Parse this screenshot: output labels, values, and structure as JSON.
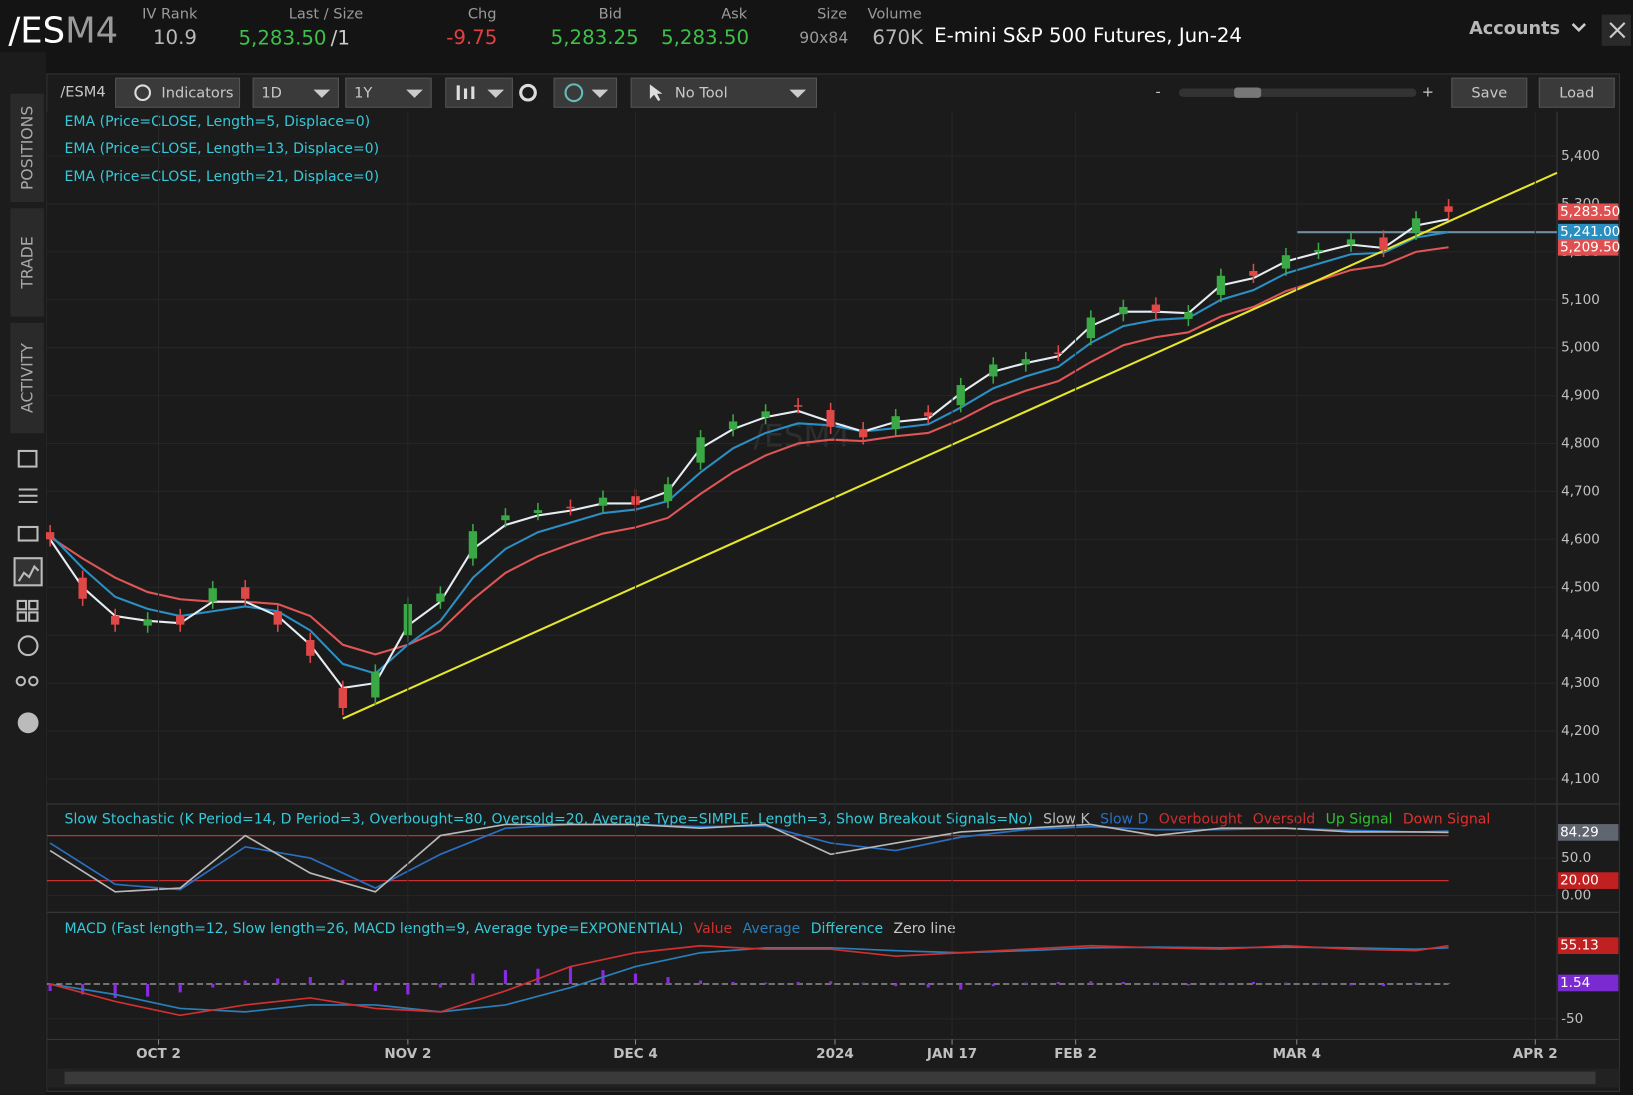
{
  "header": {
    "symbol_root": "/ES",
    "symbol_month": "M4",
    "iv_rank_label": "IV Rank",
    "iv_rank": 10.9,
    "last_label": "Last / Size",
    "last": "5,283.50",
    "last_size": "/1",
    "chg_label": "Chg",
    "chg": -9.75,
    "bid_label": "Bid",
    "bid": "5,283.25",
    "ask_label": "Ask",
    "ask": "5,283.50",
    "size_label": "Size",
    "size": "90x84",
    "volume_label": "Volume",
    "volume": "670K",
    "description": "E-mini S&P 500 Futures, Jun-24",
    "accounts": "Accounts"
  },
  "toolbar": {
    "symbol": "/ESM4",
    "indicators": "Indicators",
    "aggregation": "1D",
    "range": "1Y",
    "drawing": "No Tool",
    "zoom_out": "-",
    "zoom_in": "+",
    "save": "Save",
    "load": "Load"
  },
  "sidebar": [
    "POSITIONS",
    "TRADE",
    "ACTIVITY"
  ],
  "chart_data": [
    {
      "type": "candlestick",
      "x": [
        0,
        3,
        6,
        9,
        12,
        15,
        18,
        21,
        24,
        27,
        30,
        33,
        36,
        39,
        42,
        45,
        48,
        51,
        54,
        57,
        60,
        63,
        66,
        69,
        72,
        75,
        78,
        81,
        84,
        87,
        90,
        93,
        96,
        99,
        102,
        105,
        108,
        111,
        114,
        117,
        120,
        123,
        126,
        129
      ],
      "open": [
        4615,
        4520,
        4440,
        4420,
        4440,
        4470,
        4500,
        4450,
        4390,
        4290,
        4270,
        4400,
        4470,
        4560,
        4640,
        4655,
        4668,
        4670,
        4690,
        4680,
        4760,
        4830,
        4855,
        4880,
        4870,
        4830,
        4830,
        4865,
        4880,
        4940,
        4965,
        4990,
        5020,
        5070,
        5090,
        5060,
        5110,
        5160,
        5165,
        5200,
        5215,
        5230,
        5240,
        5295
      ],
      "high": [
        4630,
        4535,
        4455,
        4448,
        4455,
        4513,
        4515,
        4465,
        4405,
        4305,
        4339,
        4480,
        4502,
        4632,
        4665,
        4676,
        4683,
        4702,
        4705,
        4730,
        4828,
        4861,
        4882,
        4895,
        4885,
        4845,
        4872,
        4880,
        4937,
        4980,
        4991,
        5005,
        5078,
        5100,
        5105,
        5089,
        5165,
        5175,
        5208,
        5219,
        5241,
        5245,
        5285,
        5310
      ],
      "low": [
        4585,
        4461,
        4407,
        4405,
        4407,
        4455,
        4461,
        4407,
        4342,
        4233,
        4255,
        4385,
        4455,
        4545,
        4625,
        4640,
        4650,
        4655,
        4657,
        4665,
        4745,
        4815,
        4840,
        4863,
        4820,
        4798,
        4815,
        4842,
        4865,
        4925,
        4950,
        4972,
        5005,
        5055,
        5059,
        5045,
        5095,
        5135,
        5150,
        5185,
        5200,
        5189,
        5225,
        5268
      ],
      "close": [
        4600,
        4476,
        4422,
        4433,
        4422,
        4498,
        4476,
        4422,
        4357,
        4248,
        4324,
        4465,
        4487,
        4617,
        4650,
        4661,
        4665,
        4687,
        4672,
        4715,
        4813,
        4846,
        4867,
        4878,
        4835,
        4813,
        4857,
        4857,
        4922,
        4965,
        4976,
        4987,
        5063,
        5085,
        5074,
        5074,
        5150,
        5150,
        5193,
        5204,
        5226,
        5204,
        5270,
        5283.5
      ],
      "up_color": "#3aa845",
      "down_color": "#e04848",
      "series": [
        {
          "name": "EMA (Price=CLOSE, Length=5, Displace=0)",
          "color": "#e6edf2",
          "values": [
            4600,
            4500,
            4440,
            4430,
            4425,
            4470,
            4470,
            4440,
            4380,
            4290,
            4300,
            4420,
            4470,
            4580,
            4630,
            4650,
            4660,
            4675,
            4675,
            4700,
            4790,
            4830,
            4855,
            4868,
            4845,
            4825,
            4845,
            4852,
            4905,
            4950,
            4968,
            4982,
            5045,
            5075,
            5075,
            5072,
            5130,
            5145,
            5180,
            5198,
            5215,
            5208,
            5255,
            5268
          ]
        },
        {
          "name": "EMA (Price=CLOSE, Length=13, Displace=0)",
          "color": "#2b8fc4",
          "values": [
            4610,
            4540,
            4480,
            4455,
            4440,
            4450,
            4460,
            4450,
            4410,
            4340,
            4320,
            4380,
            4430,
            4520,
            4580,
            4615,
            4635,
            4655,
            4662,
            4680,
            4740,
            4790,
            4822,
            4842,
            4838,
            4825,
            4832,
            4840,
            4875,
            4915,
            4940,
            4960,
            5010,
            5045,
            5058,
            5062,
            5100,
            5120,
            5155,
            5175,
            5195,
            5198,
            5230,
            5241
          ]
        },
        {
          "name": "EMA (Price=CLOSE, Length=21, Displace=0)",
          "color": "#e05555",
          "values": [
            4605,
            4560,
            4520,
            4490,
            4475,
            4470,
            4470,
            4465,
            4440,
            4380,
            4360,
            4380,
            4410,
            4475,
            4530,
            4565,
            4590,
            4612,
            4625,
            4645,
            4695,
            4740,
            4775,
            4800,
            4808,
            4805,
            4815,
            4822,
            4850,
            4885,
            4910,
            4930,
            4970,
            5005,
            5022,
            5032,
            5065,
            5085,
            5118,
            5140,
            5162,
            5172,
            5200,
            5209.5
          ]
        }
      ],
      "trendline": {
        "x": [
          27,
          139
        ],
        "values": [
          4226,
          5365
        ],
        "color": "#e6e62a"
      },
      "hline": {
        "value": 5241,
        "x": [
          115,
          139
        ],
        "color": "#6f8fa0"
      },
      "last_labels": [
        {
          "value": 5283.5,
          "label": "5,283.50",
          "color": "#e05050"
        },
        {
          "value": 5241,
          "label": "5,241.00",
          "color": "#2a8fc0"
        },
        {
          "value": 5209.5,
          "label": "5,209.50",
          "color": "#e05050"
        }
      ],
      "xlim": [
        -0.3,
        139
      ],
      "ylim": [
        4052,
        5493
      ],
      "yticks": [
        {
          "value": 4100,
          "label": "4,100"
        },
        {
          "value": 4200,
          "label": "4,200"
        },
        {
          "value": 4300,
          "label": "4,300"
        },
        {
          "value": 4400,
          "label": "4,400"
        },
        {
          "value": 4500,
          "label": "4,500"
        },
        {
          "value": 4600,
          "label": "4,600"
        },
        {
          "value": 4700,
          "label": "4,700"
        },
        {
          "value": 4800,
          "label": "4,800"
        },
        {
          "value": 4900,
          "label": "4,900"
        },
        {
          "value": 5000,
          "label": "5,000"
        },
        {
          "value": 5100,
          "label": "5,100"
        },
        {
          "value": 5200,
          "label": "5,200"
        },
        {
          "value": 5300,
          "label": "5,300"
        },
        {
          "value": 5400,
          "label": "5,400"
        }
      ]
    },
    {
      "type": "line",
      "title": "Slow Stochastic (K Period=14, D Period=3, Overbought=80, Oversold=20, Average Type=SIMPLE, Length=3, Show Breakout Signals=No)",
      "x": [
        0,
        6,
        12,
        18,
        24,
        30,
        36,
        42,
        48,
        54,
        60,
        66,
        72,
        78,
        84,
        90,
        96,
        102,
        108,
        114,
        120,
        126,
        129
      ],
      "series": [
        {
          "name": "Slow K",
          "color": "#b8b8b8",
          "values": [
            60,
            5,
            10,
            80,
            30,
            5,
            80,
            95,
            95,
            95,
            90,
            95,
            55,
            70,
            85,
            90,
            95,
            80,
            90,
            90,
            85,
            85,
            84.29
          ]
        },
        {
          "name": "Slow D",
          "color": "#2a6fc0",
          "values": [
            70,
            15,
            8,
            65,
            50,
            10,
            55,
            90,
            95,
            95,
            92,
            93,
            70,
            60,
            78,
            88,
            92,
            88,
            88,
            90,
            87,
            85,
            86
          ]
        }
      ],
      "levels": [
        {
          "name": "Overbought",
          "value": 80,
          "color": "#c83030"
        },
        {
          "name": "Oversold",
          "value": 20,
          "color": "#c83030"
        }
      ],
      "signals": [
        {
          "name": "Up Signal",
          "color": "#30c030"
        },
        {
          "name": "Down Signal",
          "color": "#e03030"
        }
      ],
      "last_labels": [
        {
          "value": 84.29,
          "label": "84.29",
          "color": "#606670"
        },
        {
          "value": 20,
          "label": "20.00",
          "color": "#c02020"
        }
      ],
      "xlim": [
        -0.3,
        139
      ],
      "ylim": [
        -14,
        118
      ],
      "yticks": [
        {
          "value": 50,
          "label": "50.0"
        },
        {
          "value": 0,
          "label": "0.00"
        }
      ]
    },
    {
      "type": "macd",
      "title": "MACD (Fast length=12, Slow length=26, MACD length=9, Average type=EXPONENTIAL)",
      "x": [
        0,
        6,
        12,
        18,
        24,
        30,
        36,
        42,
        48,
        54,
        60,
        66,
        72,
        78,
        84,
        90,
        96,
        102,
        108,
        114,
        120,
        126,
        129
      ],
      "series": [
        {
          "name": "Value",
          "color": "#d03030",
          "values": [
            0,
            -25,
            -45,
            -30,
            -20,
            -35,
            -40,
            -10,
            25,
            45,
            55,
            50,
            50,
            40,
            45,
            50,
            55,
            52,
            50,
            55,
            50,
            48,
            55.13
          ]
        },
        {
          "name": "Average",
          "color": "#2a7fb8",
          "values": [
            0,
            -15,
            -35,
            -40,
            -30,
            -30,
            -40,
            -30,
            -5,
            25,
            45,
            52,
            52,
            48,
            45,
            48,
            52,
            53,
            52,
            53,
            52,
            50,
            52
          ]
        }
      ],
      "difference": {
        "name": "Difference",
        "color": "#8a2be2",
        "x": [
          0,
          3,
          6,
          9,
          12,
          15,
          18,
          21,
          24,
          27,
          30,
          33,
          36,
          39,
          42,
          45,
          48,
          51,
          54,
          57,
          60,
          63,
          66,
          69,
          72,
          75,
          78,
          81,
          84,
          87,
          90,
          93,
          96,
          99,
          102,
          105,
          108,
          111,
          114,
          117,
          120,
          123,
          126,
          129
        ],
        "values": [
          -10,
          -15,
          -20,
          -18,
          -12,
          -5,
          5,
          8,
          10,
          6,
          -10,
          -15,
          -5,
          15,
          20,
          22,
          25,
          20,
          15,
          10,
          5,
          3,
          2,
          3,
          4,
          2,
          -3,
          -5,
          -8,
          -3,
          2,
          3,
          4,
          3,
          2,
          -2,
          2,
          3,
          2,
          1,
          -2,
          -3,
          2,
          1.54
        ]
      },
      "zero_line": {
        "name": "Zero line",
        "value": 0,
        "color": "#c8c8c8"
      },
      "last_labels": [
        {
          "value": 55.13,
          "label": "55.13",
          "color": "#c02020"
        },
        {
          "value": 1.54,
          "label": "1.54",
          "color": "#7a2ad0"
        }
      ],
      "xlim": [
        -0.3,
        139
      ],
      "ylim": [
        -75,
        97
      ],
      "yticks": [
        -50
      ],
      "xticks": [
        {
          "value": 10,
          "label": "OCT 2"
        },
        {
          "value": 33,
          "label": "NOV 2"
        },
        {
          "value": 54,
          "label": "DEC 4"
        },
        {
          "value": 72.4,
          "label": "2024"
        },
        {
          "value": 83.2,
          "label": "JAN 17"
        },
        {
          "value": 94.6,
          "label": "FEB 2"
        },
        {
          "value": 115,
          "label": "MAR 4"
        },
        {
          "value": 137,
          "label": "APR 2"
        }
      ]
    }
  ]
}
